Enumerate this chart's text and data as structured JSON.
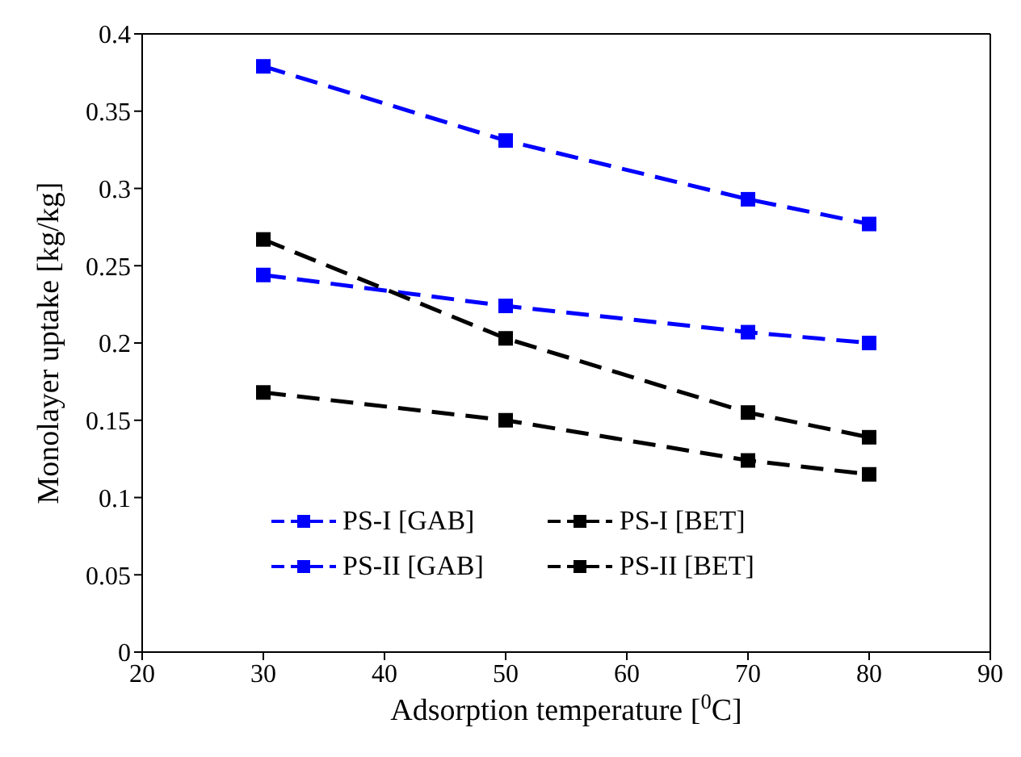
{
  "chart_data": {
    "type": "line",
    "xlabel": "Adsorption temperature [$^{0}$C]",
    "ylabel": "Monolayer uptake [kg/kg]",
    "x": [
      30,
      50,
      70,
      80
    ],
    "series": [
      {
        "name": "PS-I [GAB]",
        "color": "#0000ff",
        "values": [
          0.244,
          0.224,
          0.207,
          0.2
        ]
      },
      {
        "name": "PS-I [BET]",
        "color": "#000000",
        "values": [
          0.168,
          0.15,
          0.124,
          0.115
        ]
      },
      {
        "name": "PS-II [GAB]",
        "color": "#0000ff",
        "values": [
          0.379,
          0.331,
          0.293,
          0.277
        ]
      },
      {
        "name": "PS-II [BET]",
        "color": "#000000",
        "values": [
          0.267,
          0.203,
          0.155,
          0.139
        ]
      }
    ],
    "xlim": [
      20,
      90
    ],
    "xticks": [
      20,
      30,
      40,
      50,
      60,
      70,
      80,
      90
    ],
    "ylim": [
      0,
      0.4
    ],
    "yticks": [
      0,
      0.05,
      0.1,
      0.15,
      0.2,
      0.25,
      0.3,
      0.35,
      0.4
    ],
    "grid": false,
    "legend": "bottom left",
    "marker": "square",
    "line_style": "dashed"
  }
}
